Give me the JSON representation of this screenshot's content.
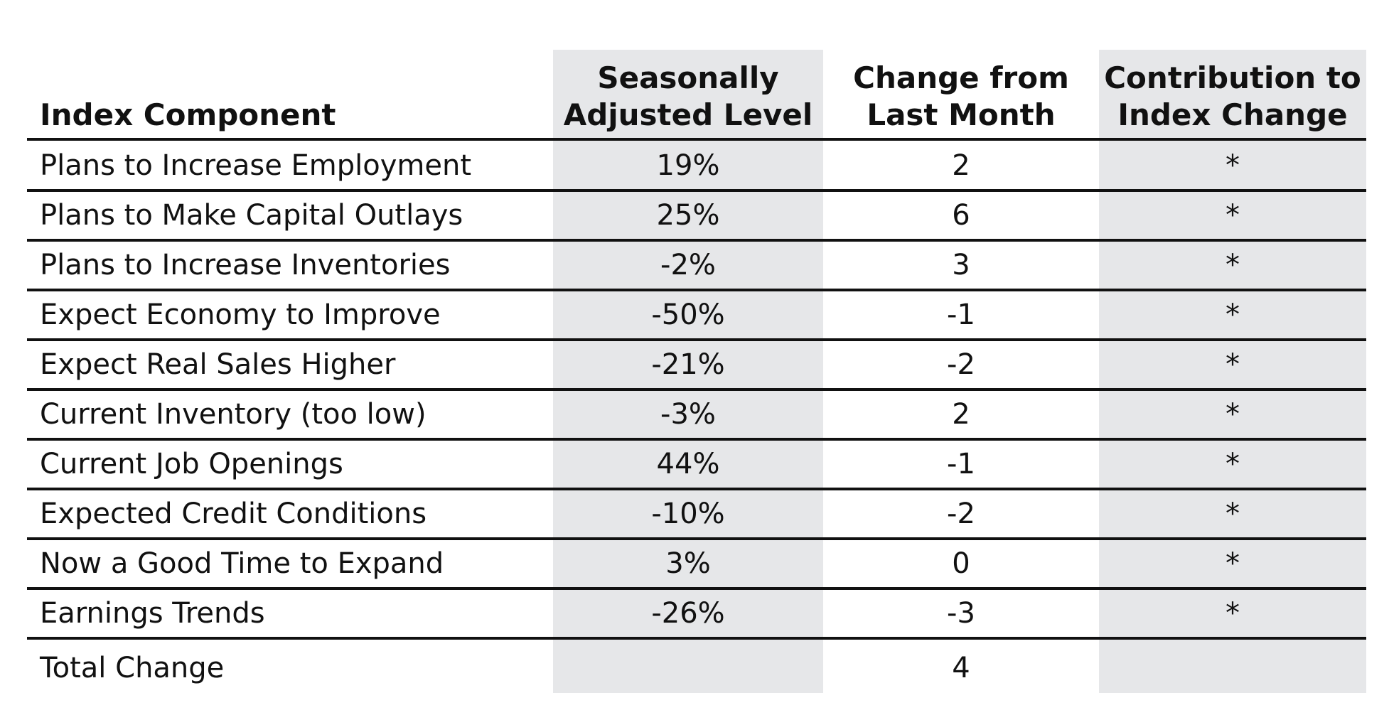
{
  "table": {
    "headers": {
      "component": "Index Component",
      "level": "Seasonally\nAdjusted Level",
      "change": "Change from\nLast Month",
      "contribution": "Contribution to\nIndex Change"
    },
    "rows": [
      {
        "component": "Plans to Increase Employment",
        "level": "19%",
        "change": "2",
        "contribution": "*"
      },
      {
        "component": "Plans to Make Capital Outlays",
        "level": "25%",
        "change": "6",
        "contribution": "*"
      },
      {
        "component": "Plans to Increase Inventories",
        "level": "-2%",
        "change": "3",
        "contribution": "*"
      },
      {
        "component": "Expect Economy to Improve",
        "level": "-50%",
        "change": "-1",
        "contribution": "*"
      },
      {
        "component": "Expect Real Sales Higher",
        "level": "-21%",
        "change": "-2",
        "contribution": "*"
      },
      {
        "component": "Current Inventory (too low)",
        "level": "-3%",
        "change": "2",
        "contribution": "*"
      },
      {
        "component": "Current Job Openings",
        "level": "44%",
        "change": "-1",
        "contribution": "*"
      },
      {
        "component": "Expected Credit Conditions",
        "level": "-10%",
        "change": "-2",
        "contribution": "*"
      },
      {
        "component": "Now a Good Time to Expand",
        "level": "3%",
        "change": "0",
        "contribution": "*"
      },
      {
        "component": "Earnings Trends",
        "level": "-26%",
        "change": "-3",
        "contribution": "*"
      }
    ],
    "total": {
      "component": "Total Change",
      "level": "",
      "change": "4",
      "contribution": ""
    }
  }
}
